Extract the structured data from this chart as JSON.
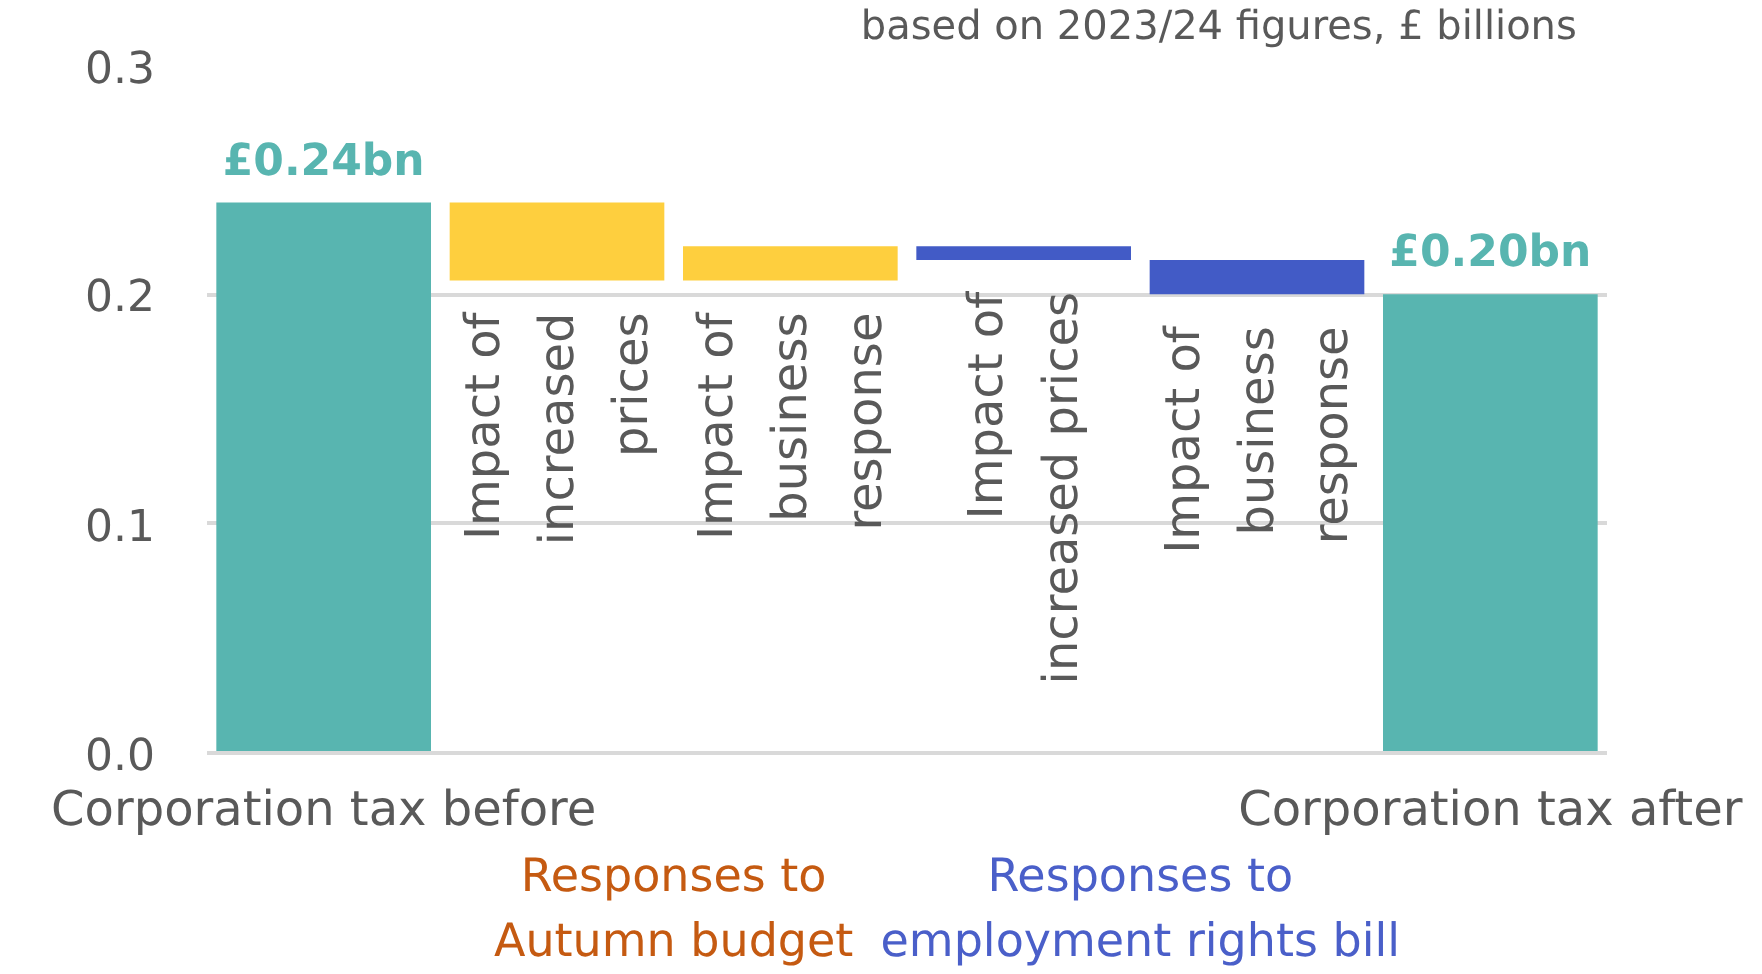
{
  "chart_data": {
    "type": "bar",
    "subtitle": "based on 2023/24 figures, £ billions",
    "categories": [
      "Corporation tax before",
      "Impact of\nincreased\nprices",
      "Impact of\nbusiness\nresponse",
      "Impact of\nincreased prices",
      "Impact of\nbusiness\nresponse",
      "Corporation tax after"
    ],
    "values": [
      0.24,
      -0.034,
      0.015,
      -0.006,
      -0.015,
      0.2
    ],
    "base": [
      0,
      0.24,
      0.206,
      0.221,
      0.215,
      0
    ],
    "colors": [
      "#58b5b0",
      "#fecf3e",
      "#fecf3e",
      "#425bc6",
      "#425bc6",
      "#58b5b0"
    ],
    "value_labels": [
      "£0.24bn",
      null,
      null,
      null,
      null,
      "£0.20bn"
    ],
    "annotations": [
      "Responses to\nAutumn budget",
      "Responses to\nemployment rights bill"
    ],
    "ylim": [
      0,
      0.3
    ],
    "yticks": [
      {
        "value": 0,
        "label": "0.0"
      },
      0.1,
      0.2,
      0.3
    ],
    "grid": "y"
  }
}
